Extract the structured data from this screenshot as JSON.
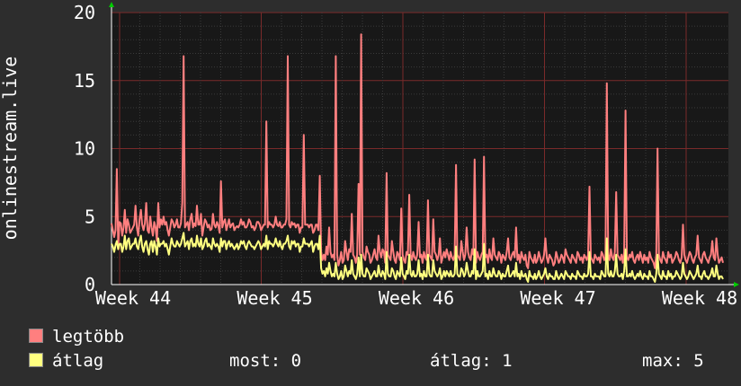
{
  "chart_data": {
    "type": "line",
    "ylabel": "onlinestream.live",
    "ylim": [
      0,
      20
    ],
    "yticks": [
      0,
      5,
      10,
      15,
      20
    ],
    "xticks": [
      "Week 44",
      "Week 45",
      "Week 46",
      "Week 47",
      "Week 48"
    ],
    "grid": true,
    "series": [
      {
        "name": "legtöbb",
        "color": "#ff7f7f",
        "values": [
          4.5,
          4,
          3.5,
          4,
          8.5,
          3,
          4.6,
          4.5,
          3.6,
          4.2,
          5.5,
          3.8,
          4.8,
          4.4,
          3.8,
          4,
          4.2,
          4.4,
          5.8,
          4.2,
          3.6,
          4.8,
          5.5,
          4.4,
          4,
          4.5,
          6,
          4,
          3.8,
          5,
          4.2,
          3.6,
          4.6,
          4.2,
          3.2,
          6,
          4.2,
          4.8,
          4.4,
          5,
          4.4,
          4.6,
          4,
          3.6,
          4.2,
          4.8,
          4.6,
          4.2,
          4.4,
          4.8,
          4.2,
          4.2,
          4.5,
          6,
          16.8,
          4.2,
          4.4,
          4.6,
          4,
          4.8,
          5.2,
          4.2,
          4.5,
          4.3,
          5.8,
          4.4,
          4.4,
          5.2,
          3.6,
          4.2,
          4.8,
          4.6,
          4.2,
          4.4,
          4,
          4.1,
          5.2,
          4.4,
          4.2,
          4.6,
          4.3,
          3.8,
          7.6,
          4.2,
          4.6,
          4.8,
          4,
          4.4,
          4.8,
          4.2,
          4.4,
          4.5,
          4,
          4.2,
          4.3,
          4.2,
          4.4,
          4.8,
          4.4,
          4.6,
          4.2,
          4.2,
          4.4,
          4.8,
          4.6,
          4.2,
          4.3,
          4,
          4.2,
          4.6,
          4.6,
          4.4,
          4,
          4.2,
          4.4,
          4.4,
          12,
          4.2,
          4.6,
          4.4,
          4.4,
          4.2,
          4.4,
          5,
          4.4,
          4.3,
          4.6,
          4.2,
          4.2,
          4.4,
          4.4,
          4.8,
          16.8,
          4.4,
          4.2,
          4.6,
          4.4,
          4.5,
          4.2,
          4.4,
          4.4,
          3.8,
          4.2,
          4.2,
          11,
          4.4,
          4.4,
          4.4,
          4.2,
          4.4,
          4.4,
          3.8,
          4,
          4.4,
          4.4,
          4,
          8,
          2.4,
          1.8,
          2.2,
          1.8,
          2.8,
          2.2,
          4.2,
          2.4,
          2,
          2.2,
          1.8,
          16.8,
          2.2,
          1.4,
          1.8,
          2.4,
          1.6,
          1.8,
          3.2,
          2.4,
          1.8,
          2.6,
          2.4,
          5.2,
          2.2,
          2,
          1.6,
          2.2,
          7.4,
          2.2,
          18.4,
          2.4,
          2,
          1.8,
          2.8,
          2.4,
          2.2,
          1.6,
          1.8,
          2.2,
          2.6,
          2,
          1.8,
          3.6,
          2.4,
          2,
          2.6,
          2.4,
          1.6,
          8.2,
          2.2,
          2,
          1.8,
          3.2,
          2.4,
          1.8,
          1.6,
          2.4,
          2.2,
          1.8,
          5.6,
          2.2,
          1.8,
          1.6,
          2.4,
          2.2,
          6.6,
          2.2,
          1.8,
          2.4,
          2,
          1.8,
          2.2,
          4.6,
          2,
          2.2,
          1.6,
          2.4,
          2,
          1.8,
          6.2,
          2.2,
          2,
          1.8,
          4.8,
          2.4,
          2.2,
          1.8,
          2.2,
          3.4,
          1.6,
          2,
          2.4,
          2,
          2.6,
          2.2,
          1.8,
          2.4,
          2,
          1.8,
          2.2,
          8.8,
          2.2,
          2,
          1.8,
          3.2,
          2.4,
          1.8,
          2.2,
          4.2,
          2.4,
          2,
          1.8,
          2.6,
          2.2,
          9.2,
          1.6,
          2.4,
          2,
          1.8,
          2.2,
          2.4,
          9.4,
          2,
          2.2,
          1.6,
          2.6,
          2,
          1.8,
          3.4,
          2.2,
          2,
          1.8,
          2.4,
          2.2,
          1.6,
          2.2,
          2,
          1.8,
          2.4,
          3.4,
          2,
          1.8,
          2.2,
          2.4,
          2,
          4.2,
          1.8,
          2.2,
          1.6,
          2.4,
          2,
          1.8,
          2.2,
          1.4,
          1.2,
          2.4,
          2,
          1.8,
          1.6,
          2.2,
          1.6,
          1.8,
          2.4,
          2,
          1.6,
          1.8,
          2.2,
          3.4,
          2,
          1.6,
          2.2,
          2,
          1.8,
          1.4,
          1.6,
          2.4,
          2,
          1.6,
          1.8,
          2.2,
          2,
          1.6,
          2.6,
          2.2,
          2,
          1.8,
          1.6,
          2.2,
          2,
          1.8,
          1.6,
          2.4,
          2.2,
          1.8,
          2,
          1.6,
          2.2,
          2,
          1.8,
          2.2,
          7.2,
          2,
          1.8,
          1.6,
          2.2,
          2,
          1.8,
          2,
          1.6,
          2.4,
          2.2,
          1.8,
          2,
          14.8,
          2.2,
          1.8,
          2.6,
          2,
          1.8,
          2.4,
          6.8,
          2.2,
          2,
          1.8,
          2.2,
          1.6,
          2.4,
          12.8,
          2,
          1.8,
          2.2,
          2,
          2.4,
          1.8,
          1.6,
          2,
          2.2,
          1.8,
          2.4,
          2,
          1.6,
          2.2,
          1.8,
          2,
          1.6,
          2.4,
          2,
          1.8,
          1.6,
          1.2,
          2.2,
          10,
          2.2,
          1.8,
          1.6,
          2.4,
          2,
          1.8,
          1.6,
          2.4,
          2,
          2.2,
          1.6,
          1.8,
          2,
          2.4,
          2.2,
          1.8,
          1.6,
          2,
          4.4,
          2.2,
          1.8,
          1.6,
          2,
          2.4,
          2.2,
          1.8,
          1.6,
          2,
          2.2,
          3.6,
          2,
          1.8,
          1.6,
          2.2,
          2.4,
          2,
          1.8,
          1.6,
          2,
          2.2,
          3.2,
          2,
          1.8,
          3.4,
          2.2,
          1.6,
          1.8,
          2,
          1.6
        ]
      },
      {
        "name": "átlag",
        "color": "#ffff80",
        "values": [
          3,
          2.8,
          2.4,
          2.9,
          3.2,
          2.6,
          3,
          3,
          2.4,
          2.8,
          3.6,
          2.6,
          3.2,
          3.4,
          2.6,
          2.8,
          3,
          3,
          3.4,
          2.8,
          2.6,
          3.2,
          3.6,
          2.8,
          2.4,
          3,
          3.2,
          2.6,
          2.2,
          3,
          3.2,
          2.4,
          3.2,
          2.8,
          2.2,
          3.4,
          2.8,
          3,
          3,
          3.2,
          2.8,
          3,
          2.6,
          2.2,
          2.8,
          3.4,
          3,
          2.8,
          2.8,
          3.2,
          3,
          2.8,
          3,
          3.4,
          3.8,
          2.8,
          3,
          3.2,
          2.6,
          3.2,
          3.4,
          2.8,
          3,
          2.8,
          3.6,
          3,
          2.8,
          3.4,
          2.6,
          2.8,
          3.2,
          3.4,
          2.8,
          3,
          2.8,
          2.6,
          3.4,
          3,
          2.8,
          3,
          2.8,
          2.4,
          3.4,
          2.8,
          3.2,
          3.2,
          2.6,
          3,
          3.2,
          2.8,
          3,
          2.8,
          2.6,
          2.8,
          3,
          2.6,
          2.8,
          3.2,
          3,
          3.2,
          2.8,
          2.6,
          3,
          3.2,
          3,
          2.8,
          2.8,
          2.6,
          2.8,
          3,
          3.2,
          3,
          2.6,
          2.8,
          3,
          2.8,
          3.6,
          2.6,
          3.2,
          3,
          3,
          2.8,
          3,
          3.4,
          3,
          2.8,
          3.2,
          2.8,
          2.6,
          3,
          3,
          3.2,
          3.6,
          2.8,
          2.6,
          3.2,
          3,
          3.2,
          2.8,
          3,
          3,
          2.4,
          2.8,
          2.8,
          3.4,
          3,
          3,
          3,
          2.8,
          3,
          3.2,
          2.4,
          2.8,
          3,
          3,
          2.6,
          3.6,
          1.2,
          0.8,
          1,
          0.6,
          1.2,
          0.8,
          1.6,
          1,
          0.6,
          0.8,
          0.6,
          1.6,
          0.8,
          0.4,
          0.6,
          1,
          0.4,
          0.6,
          1.4,
          1,
          0.6,
          1,
          0.8,
          1.8,
          0.8,
          0.6,
          0.4,
          0.8,
          2,
          0.6,
          2.2,
          0.8,
          0.6,
          0.6,
          1.2,
          1,
          0.8,
          0.4,
          0.6,
          0.8,
          1,
          0.6,
          0.6,
          1.4,
          0.8,
          0.6,
          1,
          0.8,
          0.4,
          2.4,
          0.8,
          0.6,
          0.6,
          1.2,
          1,
          0.6,
          0.4,
          1,
          0.8,
          0.6,
          2,
          0.8,
          0.6,
          0.4,
          1,
          0.8,
          2.2,
          0.8,
          0.6,
          1,
          0.6,
          0.6,
          0.8,
          1.8,
          0.6,
          0.8,
          0.4,
          1,
          0.6,
          0.6,
          2.2,
          0.8,
          0.6,
          0.6,
          1.8,
          1,
          0.8,
          0.6,
          0.8,
          1.2,
          0.4,
          0.6,
          1,
          0.6,
          1,
          0.8,
          0.6,
          1,
          0.6,
          0.6,
          0.8,
          2.8,
          0.8,
          0.6,
          0.6,
          1.2,
          1,
          0.6,
          0.8,
          1.6,
          1,
          0.6,
          0.6,
          1,
          0.8,
          2.6,
          0.4,
          1,
          0.6,
          0.6,
          0.8,
          1,
          3,
          0.6,
          0.8,
          0.4,
          1,
          0.6,
          0.6,
          1.2,
          0.8,
          0.6,
          0.6,
          1,
          0.8,
          0.4,
          0.8,
          0.6,
          0.6,
          1,
          1.4,
          0.6,
          0.6,
          0.8,
          1,
          0.6,
          1.6,
          0.6,
          0.8,
          0.4,
          1,
          0.6,
          0.6,
          0.8,
          0.4,
          0.2,
          1,
          0.6,
          0.6,
          0.4,
          0.8,
          0.4,
          0.6,
          1,
          0.6,
          0.4,
          0.6,
          0.8,
          1.2,
          0.6,
          0.4,
          0.8,
          0.6,
          0.6,
          0.4,
          0.4,
          1,
          0.6,
          0.4,
          0.6,
          0.8,
          0.6,
          0.4,
          1,
          0.8,
          0.6,
          0.6,
          0.4,
          0.8,
          0.6,
          0.6,
          0.4,
          1,
          0.8,
          0.6,
          0.6,
          0.4,
          0.8,
          0.6,
          0.6,
          0.8,
          2.4,
          0.6,
          0.6,
          0.4,
          0.8,
          0.6,
          0.6,
          0.6,
          0.4,
          1,
          0.8,
          0.6,
          0.6,
          3.4,
          0.8,
          0.6,
          1,
          0.6,
          0.6,
          1,
          2.2,
          0.8,
          0.6,
          0.6,
          0.8,
          0.4,
          1,
          2.6,
          0.6,
          0.6,
          0.8,
          0.6,
          1,
          0.6,
          0.4,
          0.6,
          0.8,
          0.6,
          1,
          0.6,
          0.4,
          0.8,
          0.6,
          0.6,
          0.4,
          1,
          0.6,
          0.6,
          0.4,
          0.2,
          0.8,
          2.2,
          0.8,
          0.6,
          0.4,
          1,
          0.6,
          0.6,
          0.4,
          1,
          0.6,
          0.8,
          0.4,
          0.6,
          0.6,
          1,
          0.8,
          0.6,
          0.4,
          0.6,
          1.6,
          0.8,
          0.6,
          0.4,
          0.6,
          1,
          0.8,
          0.6,
          0.4,
          0.6,
          0.8,
          1.4,
          0.6,
          0.6,
          0.4,
          0.8,
          1,
          0.6,
          0.6,
          0.4,
          0.6,
          0.8,
          1.2,
          0.6,
          0.6,
          1.4,
          0.8,
          0.4,
          0.6,
          0.6,
          0.4
        ]
      }
    ]
  },
  "legend": {
    "max_label": "legtöbb",
    "avg_label": "átlag",
    "max_color": "#ff7f7f",
    "avg_color": "#ffff80"
  },
  "stats": {
    "now": "most: 0",
    "avg": "átlag: 1",
    "max": "max: 5"
  }
}
